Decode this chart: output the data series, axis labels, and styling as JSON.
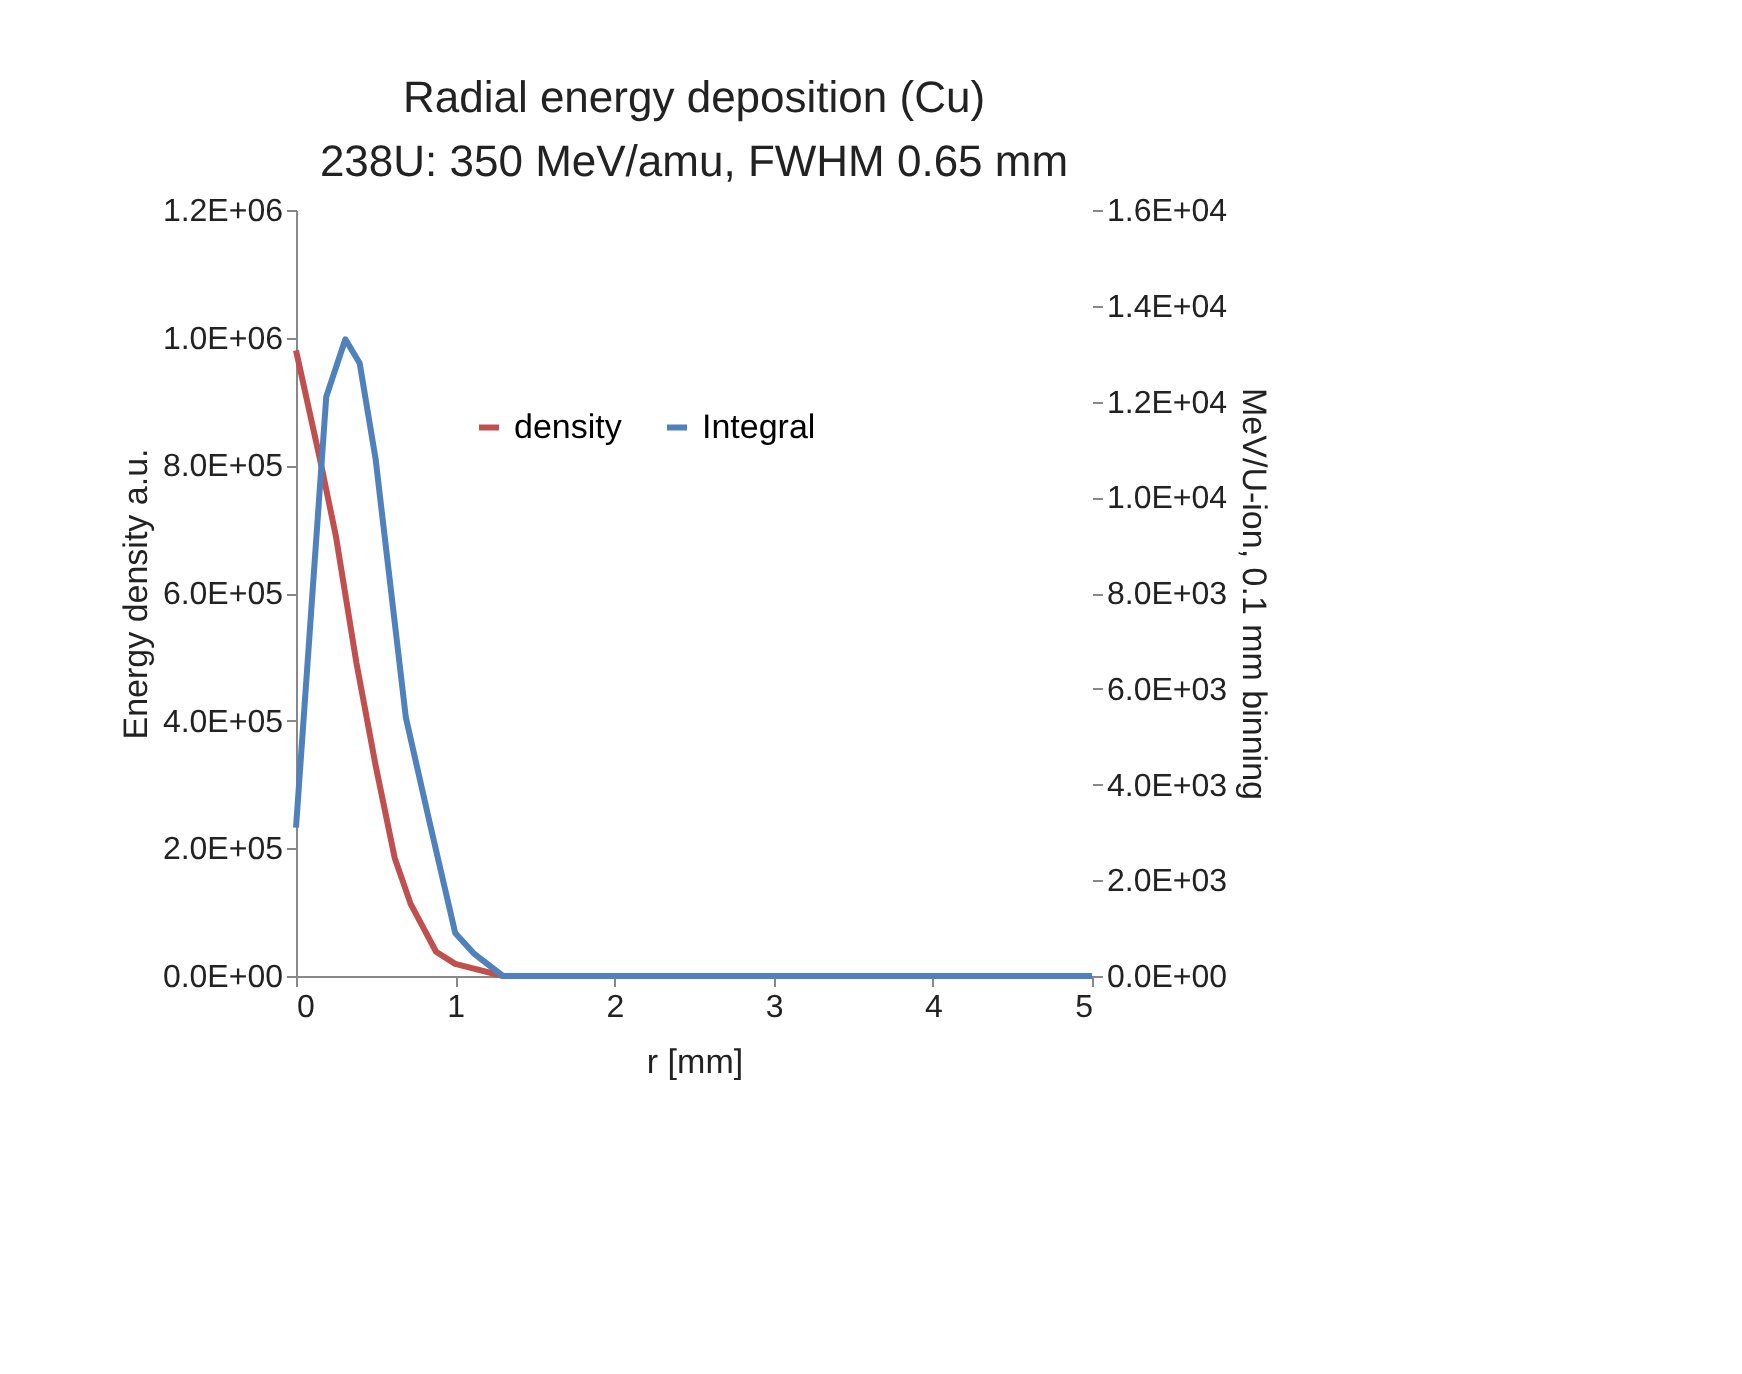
{
  "chart_data": {
    "type": "line",
    "title": "Radial energy deposition (Cu)",
    "subtitle": "238U: 350 MeV/amu, FWHM 0.65 mm",
    "xlabel": "r  [mm]",
    "ylabel": "Energy density a.u.",
    "y2label": "MeV/U-ion, 0.1 mm binning",
    "xlim": [
      0,
      5
    ],
    "xticks": [
      0,
      1,
      2,
      3,
      4,
      5
    ],
    "ylim": [
      0,
      1200000
    ],
    "yticks": [
      {
        "value": 0,
        "label": "0.0E+00"
      },
      {
        "value": 200000,
        "label": "2.0E+05"
      },
      {
        "value": 400000,
        "label": "4.0E+05"
      },
      {
        "value": 600000,
        "label": "6.0E+05"
      },
      {
        "value": 800000,
        "label": "8.0E+05"
      },
      {
        "value": 1000000,
        "label": "1.0E+06"
      },
      {
        "value": 1200000,
        "label": "1.2E+06"
      }
    ],
    "y2lim": [
      0,
      16000
    ],
    "y2ticks": [
      {
        "value": 0,
        "label": "0.0E+00"
      },
      {
        "value": 2000,
        "label": "2.0E+03"
      },
      {
        "value": 4000,
        "label": "4.0E+03"
      },
      {
        "value": 6000,
        "label": "6.0E+03"
      },
      {
        "value": 8000,
        "label": "8.0E+03"
      },
      {
        "value": 10000,
        "label": "1.0E+04"
      },
      {
        "value": 12000,
        "label": "1.2E+04"
      },
      {
        "value": 14000,
        "label": "1.4E+04"
      },
      {
        "value": 16000,
        "label": "1.6E+04"
      }
    ],
    "legend": "top",
    "grid": false,
    "marker": "none",
    "line_style": "solid",
    "series": [
      {
        "name": "density",
        "color": "#c0504d",
        "x": [
          0,
          0.15,
          0.25,
          0.38,
          0.5,
          0.62,
          0.72,
          0.88,
          1.0,
          1.3
        ],
        "values": [
          980000,
          810000,
          690000,
          490000,
          330000,
          185000,
          113000,
          38000,
          19000,
          0
        ]
      },
      {
        "name": "Integral",
        "color": "#4f81bd",
        "axis": "y2",
        "x": [
          0,
          0.19,
          0.31,
          0.4,
          0.5,
          0.69,
          0.84,
          1.0,
          1.12,
          1.3,
          2,
          3,
          4,
          5
        ],
        "values": [
          3100,
          12100,
          13300,
          12800,
          10800,
          5400,
          3200,
          900,
          460,
          0,
          0,
          0,
          0,
          0
        ]
      }
    ]
  }
}
